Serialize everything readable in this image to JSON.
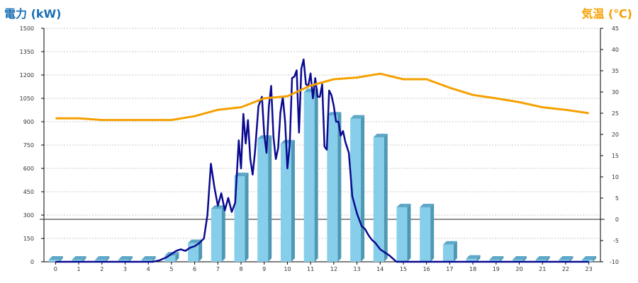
{
  "chart_data": {
    "type": "bar",
    "left_axis_title": "電力 (kW)",
    "right_axis_title": "気温 (℃)",
    "categories": [
      "0",
      "1",
      "2",
      "3",
      "4",
      "5",
      "6",
      "7",
      "8",
      "9",
      "10",
      "11",
      "12",
      "13",
      "14",
      "15",
      "16",
      "17",
      "18",
      "19",
      "20",
      "21",
      "22",
      "23"
    ],
    "ylim_left": [
      0,
      1500
    ],
    "yticks_left": [
      0,
      150,
      300,
      450,
      600,
      750,
      900,
      1050,
      1200,
      1350,
      1500
    ],
    "ylim_right": [
      -10,
      45
    ],
    "yticks_right": [
      -10,
      -5,
      0,
      5,
      10,
      15,
      20,
      25,
      30,
      35,
      40,
      45
    ],
    "grid": true,
    "colors": {
      "bar": "#87ceeb",
      "bar_side": "#4f98b5",
      "bar_top": "#5fa8c8",
      "power_line": "#0a0a90",
      "temperature_line": "#f5a000",
      "left_title": "#1a6fb5",
      "right_title": "#f5a000"
    },
    "series": [
      {
        "kind": "bar",
        "axis": "left",
        "values": [
          0,
          0,
          0,
          0,
          0,
          40,
          120,
          340,
          550,
          790,
          760,
          1090,
          940,
          920,
          800,
          350,
          350,
          110,
          20,
          0,
          0,
          0,
          0,
          0
        ]
      },
      {
        "kind": "line",
        "axis": "left",
        "x": [
          0,
          4.2,
          4.5,
          4.8,
          5.0,
          5.2,
          5.4,
          5.6,
          5.8,
          6.0,
          6.2,
          6.4,
          6.55,
          6.7,
          6.85,
          7.0,
          7.15,
          7.3,
          7.45,
          7.6,
          7.75,
          7.9,
          8.0,
          8.1,
          8.2,
          8.3,
          8.4,
          8.5,
          8.6,
          8.75,
          8.9,
          9.0,
          9.1,
          9.2,
          9.3,
          9.4,
          9.5,
          9.6,
          9.7,
          9.8,
          9.9,
          10.0,
          10.1,
          10.2,
          10.3,
          10.4,
          10.5,
          10.6,
          10.7,
          10.8,
          10.9,
          11.0,
          11.1,
          11.2,
          11.3,
          11.4,
          11.5,
          11.6,
          11.7,
          11.8,
          11.9,
          12.0,
          12.1,
          12.2,
          12.3,
          12.4,
          12.5,
          12.65,
          12.8,
          13.0,
          13.2,
          13.35,
          13.5,
          13.65,
          13.8,
          14.0,
          14.2,
          14.4,
          14.55,
          14.7,
          14.8,
          14.9,
          15.0,
          15.15,
          15.3,
          15.45,
          15.6,
          15.75,
          15.9,
          16.0,
          16.1,
          16.2,
          16.35,
          16.5,
          16.7,
          16.9,
          17.1,
          17.3,
          17.5,
          17.7,
          17.9,
          18.0,
          18.2,
          23.0
        ],
        "values": [
          0,
          0,
          10,
          30,
          50,
          70,
          80,
          70,
          90,
          100,
          120,
          150,
          300,
          630,
          480,
          360,
          440,
          330,
          410,
          320,
          380,
          780,
          600,
          950,
          760,
          910,
          660,
          560,
          700,
          1000,
          1060,
          820,
          700,
          1000,
          1130,
          800,
          660,
          730,
          960,
          1060,
          900,
          600,
          750,
          1180,
          1190,
          1230,
          830,
          1240,
          1300,
          1140,
          1130,
          1210,
          1050,
          1180,
          1060,
          1060,
          1140,
          740,
          720,
          1100,
          1070,
          1000,
          900,
          900,
          810,
          840,
          770,
          700,
          420,
          310,
          230,
          210,
          170,
          140,
          120,
          80,
          60,
          40,
          20,
          0,
          0,
          0,
          0,
          0,
          0,
          0,
          0,
          0,
          0,
          0,
          0,
          0,
          0,
          0,
          0,
          0,
          0,
          0,
          0,
          0,
          0,
          0,
          0,
          0
        ]
      },
      {
        "kind": "line",
        "axis": "right",
        "x": [
          0,
          1,
          2,
          3,
          4,
          5,
          6,
          7,
          8,
          9,
          10,
          11,
          12,
          13,
          14,
          15,
          16,
          17,
          18,
          19,
          20,
          21,
          22,
          23
        ],
        "values": [
          23.8,
          23.8,
          23.4,
          23.4,
          23.4,
          23.4,
          24.3,
          25.8,
          26.4,
          28.5,
          29.0,
          31.5,
          33.0,
          33.4,
          34.3,
          33.0,
          33.0,
          31.0,
          29.3,
          28.5,
          27.6,
          26.4,
          25.8,
          25.0
        ]
      }
    ]
  }
}
